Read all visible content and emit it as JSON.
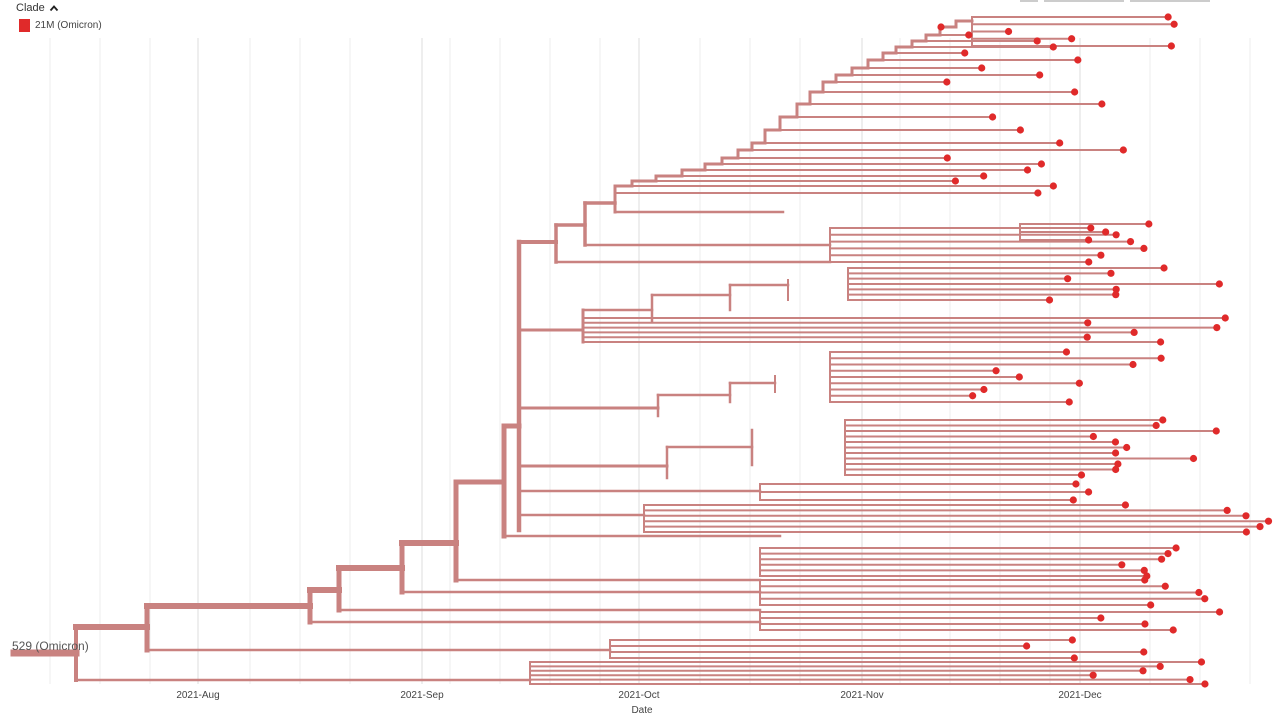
{
  "legend": {
    "title": "Clade",
    "toggle_icon": "chevron-up-icon",
    "items": [
      {
        "label": "21M (Omicron)",
        "color": "#e02a2a"
      }
    ]
  },
  "tree": {
    "root_label": "529 (Omicron)",
    "branch_color": "#c98280",
    "tip_color": "#e02a2a",
    "tip_count": 160
  },
  "axis": {
    "title": "Date",
    "ticks": [
      "2021-Aug",
      "2021-Sep",
      "2021-Oct",
      "2021-Nov",
      "2021-Dec"
    ]
  }
}
